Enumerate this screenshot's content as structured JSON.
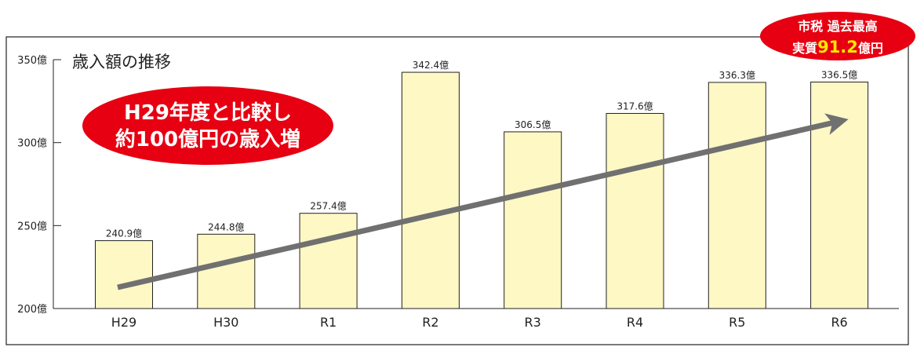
{
  "chart_data": {
    "type": "bar",
    "title": "歳入額の推移",
    "categories": [
      "H29",
      "H30",
      "R1",
      "R2",
      "R3",
      "R4",
      "R5",
      "R6"
    ],
    "values": [
      240.9,
      244.8,
      257.4,
      342.4,
      306.5,
      317.6,
      336.3,
      336.5
    ],
    "data_labels": [
      "240.9億",
      "244.8億",
      "257.4億",
      "342.4億",
      "306.5億",
      "317.6億",
      "336.3億",
      "336.5億"
    ],
    "ylim": [
      200,
      350
    ],
    "yticks": [
      200,
      250,
      300,
      350
    ],
    "ytick_labels": [
      "200億",
      "250億",
      "300億",
      "350億"
    ],
    "grid": false,
    "bar_color": "#fdf8c4",
    "trend_arrow": {
      "from": "H29",
      "to": "R6",
      "color": "#707070"
    },
    "annotations": [
      {
        "lines": [
          "H29年度と比較し",
          "約100億円の歳入増"
        ],
        "color": "#e60012"
      },
      {
        "line1": "市税 過去最高",
        "line2_prefix": "実質",
        "line2_value": "91.2",
        "line2_suffix": "億円",
        "color": "#e60012",
        "highlight_color": "#ffe600"
      }
    ]
  }
}
